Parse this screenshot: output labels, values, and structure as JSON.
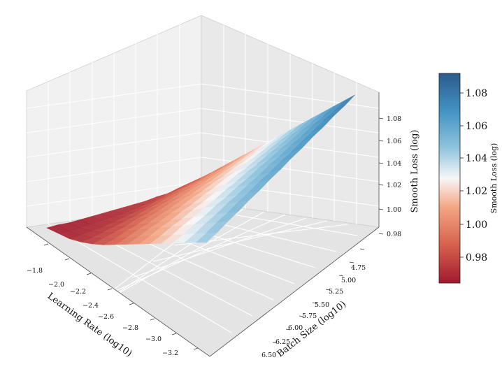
{
  "chart_data": {
    "type": "surface3d",
    "title": "",
    "xlabel": "Learning Rate (log10)",
    "ylabel": "Batch Size (log10)",
    "zlabel": "Smooth Loss (log)",
    "x_ticks": [
      "−1.8",
      "−2.0",
      "−2.2",
      "−2.4",
      "−2.6",
      "−2.8",
      "−3.0",
      "−3.2"
    ],
    "y_ticks": [
      "4.75",
      "5.00",
      "5.25",
      "5.50",
      "5.75",
      "6.00",
      "6.25",
      "6.50"
    ],
    "z_ticks": [
      "0.98",
      "1.00",
      "1.02",
      "1.04",
      "1.06",
      "1.08"
    ],
    "xlim": [
      -3.3,
      -1.7
    ],
    "ylim": [
      4.6,
      6.6
    ],
    "zlim": [
      0.96,
      1.1
    ],
    "colormap": "RdBu",
    "colorbar": {
      "label": "Smooth Loss (log)",
      "ticks": [
        "0.98",
        "1.00",
        "1.02",
        "1.04",
        "1.06",
        "1.08"
      ],
      "range": [
        0.965,
        1.092
      ]
    },
    "surface": {
      "x": [
        -3.2,
        -3.1,
        -3.0,
        -2.9,
        -2.8,
        -2.7,
        -2.6,
        -2.5,
        -2.4,
        -2.3,
        -2.2,
        -2.1,
        -2.0,
        -1.9,
        -1.8
      ],
      "y": [
        4.75,
        4.875,
        5.0,
        5.125,
        5.25,
        5.375,
        5.5,
        5.625,
        5.75,
        5.875,
        6.0,
        6.125,
        6.25,
        6.375,
        6.5
      ],
      "z": [
        [
          1.082,
          1.075,
          1.068,
          1.061,
          1.054,
          1.047,
          1.04,
          1.033,
          1.026,
          1.019,
          1.012,
          1.005,
          0.998,
          0.991,
          0.984
        ],
        [
          1.079,
          1.072,
          1.065,
          1.058,
          1.051,
          1.044,
          1.037,
          1.03,
          1.023,
          1.016,
          1.009,
          1.002,
          0.995,
          0.988,
          0.981
        ],
        [
          1.077,
          1.07,
          1.063,
          1.056,
          1.049,
          1.042,
          1.035,
          1.028,
          1.021,
          1.014,
          1.007,
          1.0,
          0.993,
          0.986,
          0.979
        ],
        [
          1.074,
          1.067,
          1.06,
          1.053,
          1.046,
          1.039,
          1.032,
          1.025,
          1.018,
          1.011,
          1.004,
          0.997,
          0.99,
          0.983,
          0.976
        ],
        [
          1.072,
          1.065,
          1.058,
          1.051,
          1.044,
          1.037,
          1.03,
          1.023,
          1.016,
          1.009,
          1.002,
          0.995,
          0.988,
          0.981,
          0.975
        ],
        [
          1.069,
          1.062,
          1.055,
          1.048,
          1.041,
          1.034,
          1.027,
          1.02,
          1.013,
          1.006,
          0.999,
          0.992,
          0.985,
          0.978,
          0.973
        ],
        [
          1.067,
          1.06,
          1.053,
          1.046,
          1.039,
          1.032,
          1.025,
          1.018,
          1.011,
          1.004,
          0.997,
          0.99,
          0.983,
          0.976,
          0.972
        ],
        [
          1.064,
          1.057,
          1.05,
          1.043,
          1.036,
          1.029,
          1.022,
          1.015,
          1.008,
          1.001,
          0.994,
          0.987,
          0.98,
          0.974,
          0.971
        ],
        [
          1.062,
          1.055,
          1.048,
          1.041,
          1.034,
          1.027,
          1.02,
          1.013,
          1.006,
          0.999,
          0.992,
          0.985,
          0.978,
          0.972,
          0.97
        ],
        [
          1.059,
          1.052,
          1.045,
          1.038,
          1.031,
          1.024,
          1.017,
          1.01,
          1.003,
          0.996,
          0.989,
          0.982,
          0.976,
          0.971,
          0.969
        ],
        [
          1.057,
          1.05,
          1.043,
          1.036,
          1.029,
          1.022,
          1.015,
          1.008,
          1.001,
          0.994,
          0.987,
          0.98,
          0.974,
          0.97,
          0.968
        ],
        [
          1.054,
          1.047,
          1.04,
          1.033,
          1.026,
          1.019,
          1.012,
          1.005,
          0.998,
          0.991,
          0.984,
          0.978,
          0.972,
          0.969,
          0.967
        ],
        [
          1.052,
          1.045,
          1.038,
          1.031,
          1.024,
          1.017,
          1.01,
          1.003,
          0.996,
          0.989,
          0.982,
          0.976,
          0.971,
          0.968,
          0.966
        ],
        [
          1.049,
          1.042,
          1.035,
          1.028,
          1.021,
          1.014,
          1.007,
          1.0,
          0.993,
          0.986,
          0.98,
          0.974,
          0.97,
          0.967,
          0.966
        ],
        [
          1.047,
          1.04,
          1.033,
          1.026,
          1.019,
          1.012,
          1.005,
          0.998,
          0.991,
          0.984,
          0.978,
          0.973,
          0.969,
          0.967,
          0.965
        ]
      ]
    }
  }
}
